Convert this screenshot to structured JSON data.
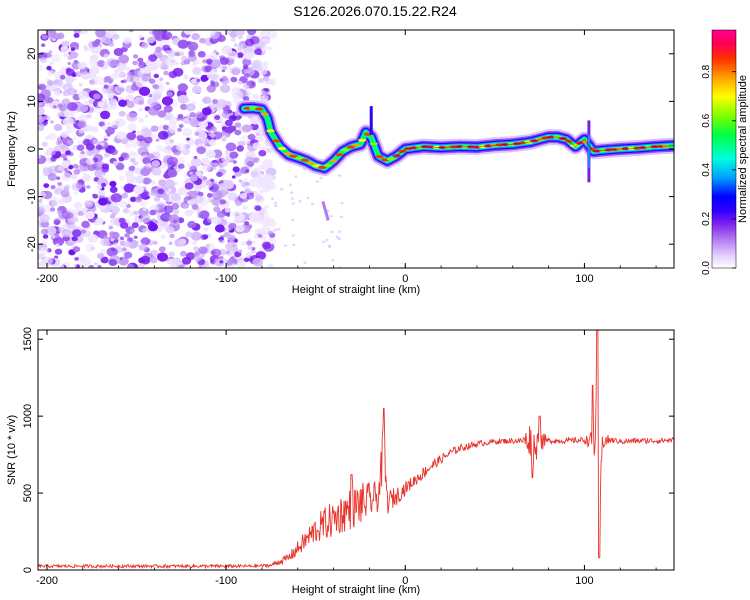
{
  "title": "S126.2026.070.15.22.R24",
  "chart_data": [
    {
      "type": "heatmap",
      "panel": "spectrogram",
      "xlabel": "Height of straight line (km)",
      "ylabel": "Frequency (Hz)",
      "xlim": [
        -205,
        150
      ],
      "ylim": [
        -25,
        25
      ],
      "xticks": [
        -200,
        -100,
        0,
        100
      ],
      "yticks": [
        -20,
        -10,
        0,
        10,
        20
      ],
      "colorbar": {
        "label": "Normalized spectral amplitude",
        "range": [
          0.0,
          0.97
        ],
        "ticks": [
          0.0,
          0.2,
          0.4,
          0.6,
          0.8
        ],
        "tick_labels": [
          "0.0",
          "0.2",
          "0.4",
          "0.6",
          "0.8"
        ],
        "colormap": [
          "#ffffff",
          "#e6d2ff",
          "#b27bf0",
          "#7a1cf0",
          "#3200ff",
          "#0000ff",
          "#00a0ff",
          "#00ffdd",
          "#00ff40",
          "#80ff00",
          "#ffff00",
          "#ffa000",
          "#ff3000",
          "#ff0050",
          "#ff0090"
        ]
      },
      "noise_region_x": [
        -205,
        -78
      ],
      "ridge": {
        "x": [
          -90,
          -85,
          -80,
          -77,
          -75,
          -70,
          -65,
          -60,
          -55,
          -50,
          -45,
          -40,
          -35,
          -30,
          -25,
          -22,
          -19,
          -15,
          -10,
          -5,
          0,
          10,
          20,
          30,
          40,
          50,
          60,
          70,
          80,
          85,
          90,
          95,
          100,
          105,
          110,
          120,
          130,
          140,
          150
        ],
        "frequency_hz": [
          8.5,
          8.6,
          8.3,
          6.5,
          3.5,
          0.5,
          -1.2,
          -1.8,
          -2.5,
          -3.5,
          -4.0,
          -2.5,
          -0.5,
          0.5,
          1.0,
          3.5,
          2.5,
          -1.5,
          -2.5,
          -1.5,
          0.0,
          0.5,
          0.3,
          0.5,
          0.4,
          0.8,
          1.0,
          1.5,
          2.5,
          2.5,
          2.0,
          0.5,
          2.0,
          -0.5,
          -0.3,
          0.0,
          0.2,
          0.5,
          0.7
        ]
      }
    },
    {
      "type": "line",
      "panel": "snr",
      "xlabel": "Height of straight line (km)",
      "ylabel": "SNR (10 * v/v)",
      "xlim": [
        -205,
        150
      ],
      "ylim": [
        0,
        1560
      ],
      "xticks": [
        -200,
        -100,
        0,
        100
      ],
      "yticks": [
        0,
        500,
        1000,
        1500
      ],
      "color": "#e8342c",
      "series": [
        {
          "name": "SNR",
          "x": [
            -205,
            -180,
            -150,
            -120,
            -100,
            -85,
            -75,
            -65,
            -60,
            -55,
            -50,
            -45,
            -40,
            -35,
            -30,
            -25,
            -20,
            -15,
            -12,
            -10,
            -5,
            0,
            5,
            10,
            15,
            20,
            25,
            30,
            40,
            50,
            60,
            65,
            70,
            72,
            75,
            80,
            90,
            100,
            104,
            106,
            107,
            108,
            110,
            115,
            120,
            130,
            140,
            150
          ],
          "values": [
            25,
            25,
            25,
            25,
            25,
            25,
            30,
            80,
            140,
            200,
            260,
            300,
            330,
            370,
            400,
            430,
            450,
            480,
            800,
            440,
            480,
            530,
            580,
            630,
            680,
            720,
            760,
            790,
            820,
            835,
            840,
            840,
            850,
            800,
            840,
            840,
            840,
            845,
            840,
            830,
            1560,
            100,
            840,
            845,
            835,
            840,
            840,
            845
          ],
          "noise_amplitude": [
            10,
            10,
            10,
            10,
            10,
            10,
            10,
            30,
            50,
            70,
            90,
            110,
            120,
            130,
            140,
            140,
            120,
            100,
            180,
            80,
            60,
            45,
            40,
            40,
            35,
            30,
            28,
            25,
            20,
            18,
            18,
            18,
            120,
            120,
            80,
            18,
            18,
            20,
            60,
            150,
            400,
            300,
            60,
            20,
            18,
            18,
            18,
            18
          ]
        }
      ]
    }
  ]
}
